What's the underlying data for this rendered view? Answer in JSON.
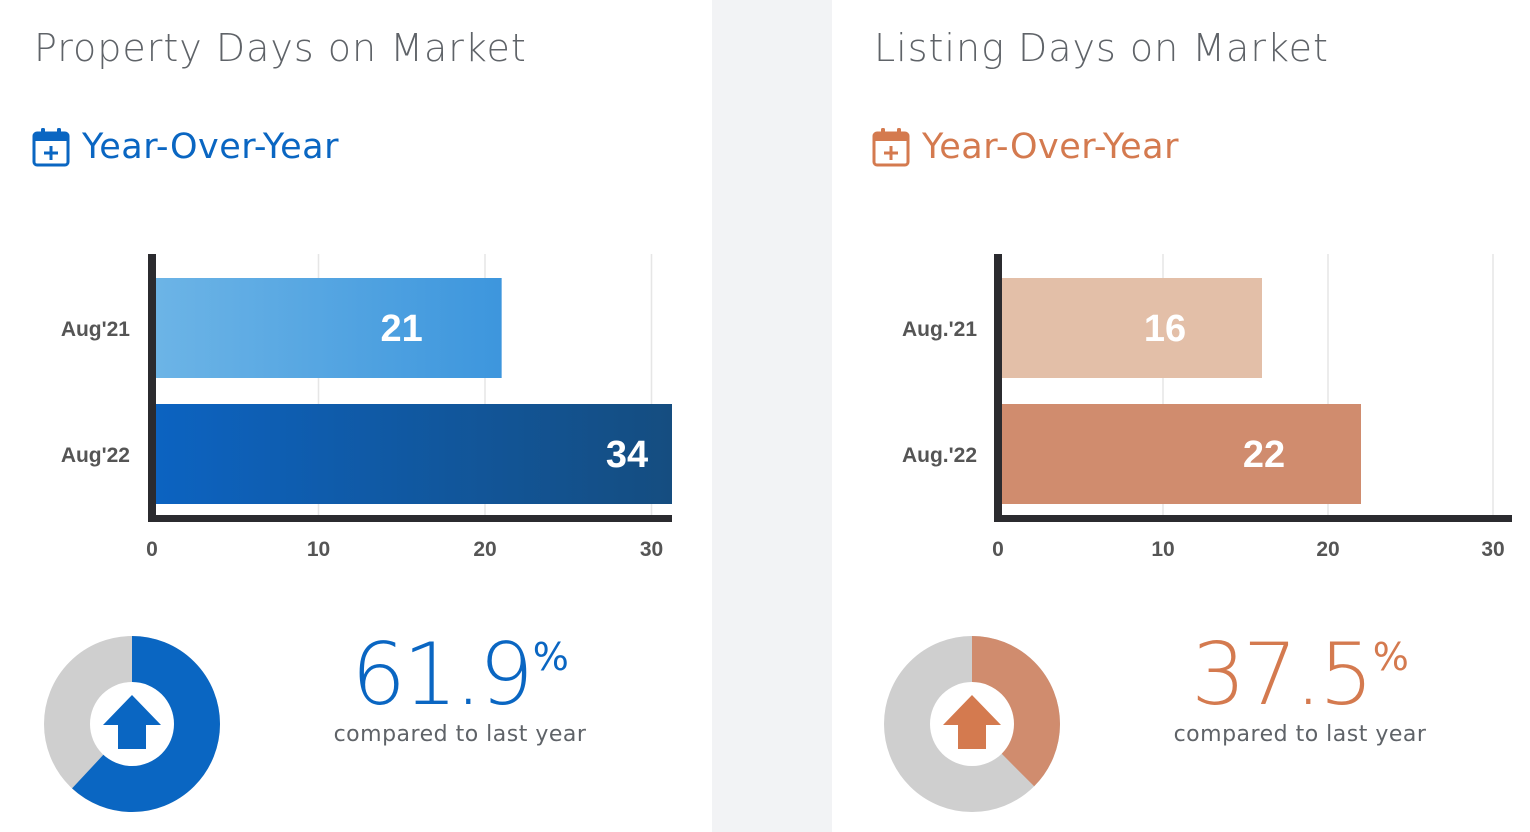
{
  "panels": [
    {
      "title": "Property Days on Market",
      "subtitle": "Year-Over-Year",
      "accent": "#0a66c2",
      "bar_colors": [
        [
          "#6cb4e6",
          "#3d96dd"
        ],
        [
          "#0c63c1",
          "#154d80"
        ]
      ],
      "axis_ticks": [
        "0",
        "10",
        "20",
        "30"
      ],
      "change": {
        "value": "61.9",
        "unit": "%",
        "caption": "compared to last year",
        "direction": "up",
        "donut_fraction": 0.619,
        "ring_color": "#0a66c2",
        "arrow_color": "#0a66c2"
      }
    },
    {
      "title": "Listing Days on Market",
      "subtitle": "Year-Over-Year",
      "accent": "#d47a4f",
      "bar_colors": [
        [
          "#e3bfa8",
          "#e3bfa8"
        ],
        [
          "#d08c6e",
          "#d08c6e"
        ]
      ],
      "axis_ticks": [
        "0",
        "10",
        "20",
        "30"
      ],
      "change": {
        "value": "37.5",
        "unit": "%",
        "caption": "compared to last year",
        "direction": "up",
        "donut_fraction": 0.375,
        "ring_color": "#d08c6e",
        "arrow_color": "#d47a4f"
      }
    }
  ],
  "chart_data": [
    {
      "type": "bar",
      "orientation": "horizontal",
      "categories": [
        "Aug'21",
        "Aug'22"
      ],
      "values": [
        21,
        34
      ],
      "xlim": [
        0,
        31
      ],
      "xticks": [
        0,
        10,
        20,
        30
      ],
      "grid": true,
      "title": "Property Days on Market",
      "subtitle": "Year-Over-Year"
    },
    {
      "type": "bar",
      "orientation": "horizontal",
      "categories": [
        "Aug.'21",
        "Aug.'22"
      ],
      "values": [
        16,
        22
      ],
      "xlim": [
        0,
        31
      ],
      "xticks": [
        0,
        10,
        20,
        30
      ],
      "grid": true,
      "title": "Listing Days on Market",
      "subtitle": "Year-Over-Year"
    }
  ]
}
